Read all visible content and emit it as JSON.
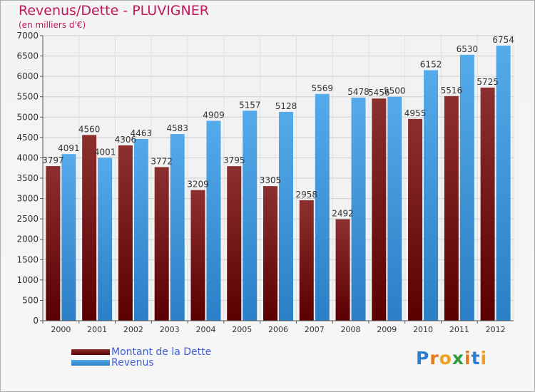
{
  "chart_data": {
    "type": "bar",
    "title": "Revenus/Dette - PLUVIGNER",
    "subtitle": "(en milliers d'€)",
    "categories": [
      "2000",
      "2001",
      "2002",
      "2003",
      "2004",
      "2005",
      "2006",
      "2007",
      "2008",
      "2009",
      "2010",
      "2011",
      "2012"
    ],
    "series": [
      {
        "name": "Montant de la Dette",
        "color": "#7a1e1e",
        "values": [
          3797,
          4560,
          4306,
          3772,
          3209,
          3795,
          3305,
          2958,
          2492,
          5456,
          4955,
          5516,
          5725
        ]
      },
      {
        "name": "Revenus",
        "color": "#3d94dc",
        "values": [
          4091,
          4001,
          4463,
          4583,
          4909,
          5157,
          5128,
          5569,
          5478,
          5500,
          6152,
          6530,
          6754
        ]
      }
    ],
    "ylim": [
      0,
      7000
    ],
    "yticks": [
      0,
      500,
      1000,
      1500,
      2000,
      2500,
      3000,
      3500,
      4000,
      4500,
      5000,
      5500,
      6000,
      6500,
      7000
    ],
    "grid": true,
    "legend_position": "bottom-left"
  },
  "legend": {
    "items": [
      {
        "label": "Montant de la Dette",
        "color": "#7a1e1e"
      },
      {
        "label": "Revenus",
        "color": "#3d94dc"
      }
    ]
  },
  "logo": {
    "text": "Proxiti"
  }
}
